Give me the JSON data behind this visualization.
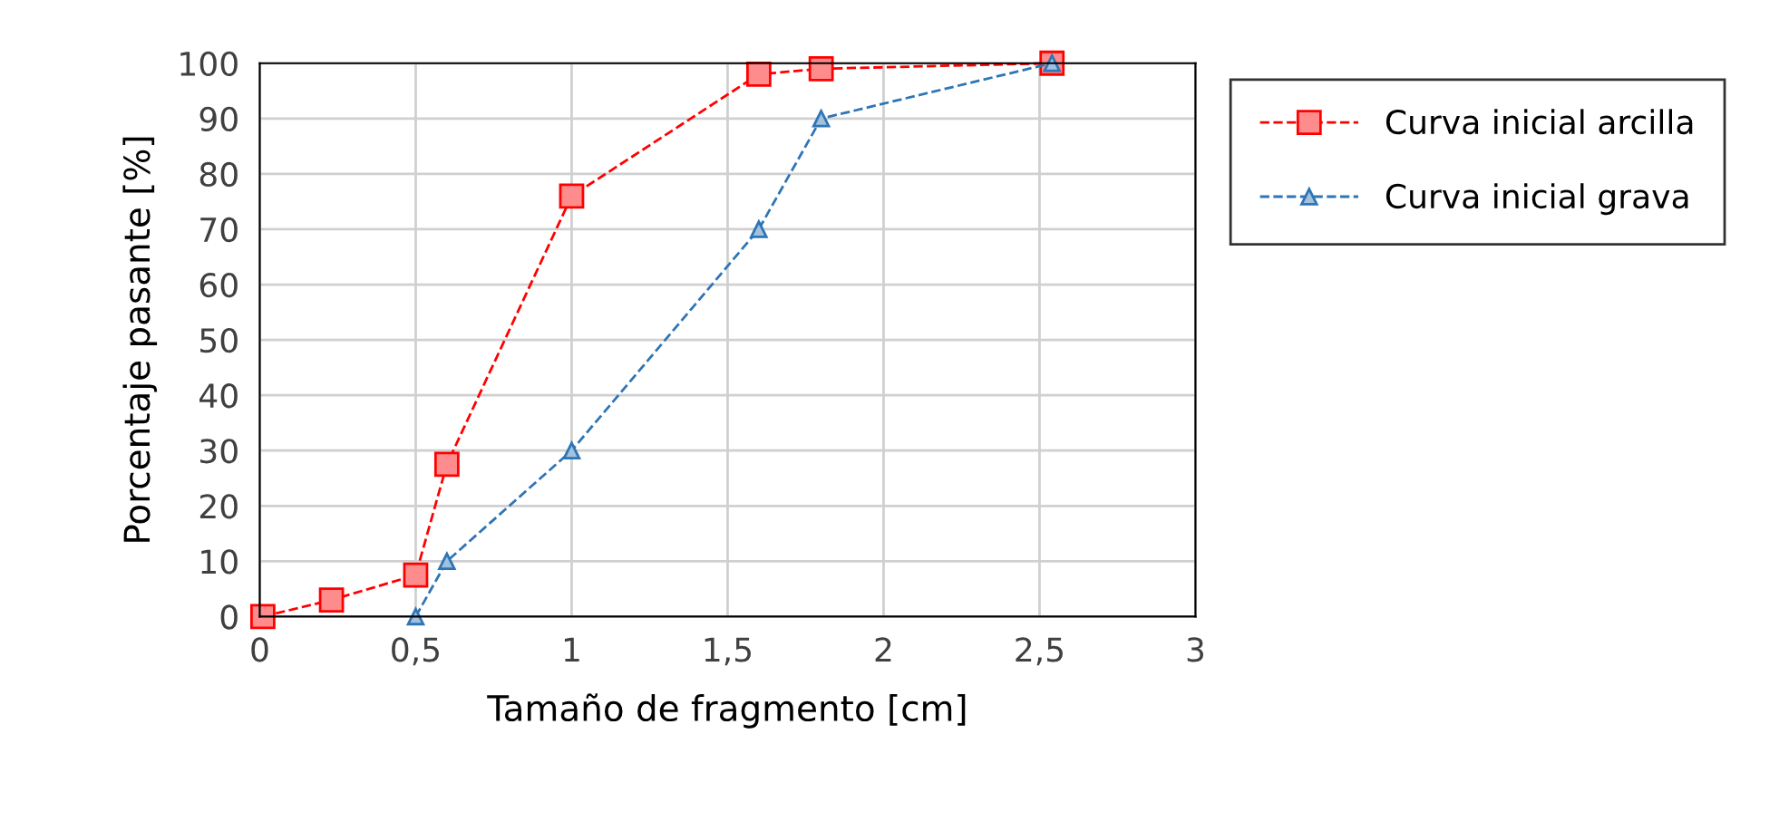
{
  "chart_data": {
    "type": "line",
    "xlabel": "Tamaño de fragmento [cm]",
    "ylabel": "Porcentaje pasante [%]",
    "series": [
      {
        "name": "Curva inicial arcilla",
        "color": "#ff0000",
        "marker": "square",
        "line_style": "dashed",
        "x": [
          0.01,
          0.23,
          0.5,
          0.6,
          1.0,
          1.6,
          1.8,
          2.54
        ],
        "values": [
          0,
          3,
          7.5,
          27.5,
          76,
          98,
          99,
          100
        ]
      },
      {
        "name": "Curva inicial grava",
        "color": "#2e75b6",
        "marker": "triangle",
        "line_style": "dashed",
        "x": [
          0.5,
          0.6,
          1.0,
          1.6,
          1.8,
          2.54
        ],
        "values": [
          0,
          10,
          30,
          70,
          90,
          100
        ]
      }
    ],
    "xlim": [
      0,
      3
    ],
    "xticks": [
      0,
      {
        "value": 0.5,
        "label": "0,5"
      },
      1,
      {
        "value": 1.5,
        "label": "1,5"
      },
      2,
      {
        "value": 2.5,
        "label": "2,5"
      },
      3
    ],
    "ylim": [
      0,
      100
    ],
    "yticks": [
      0,
      10,
      20,
      30,
      40,
      50,
      60,
      70,
      80,
      90,
      100
    ],
    "grid": true,
    "legend": "top right"
  }
}
